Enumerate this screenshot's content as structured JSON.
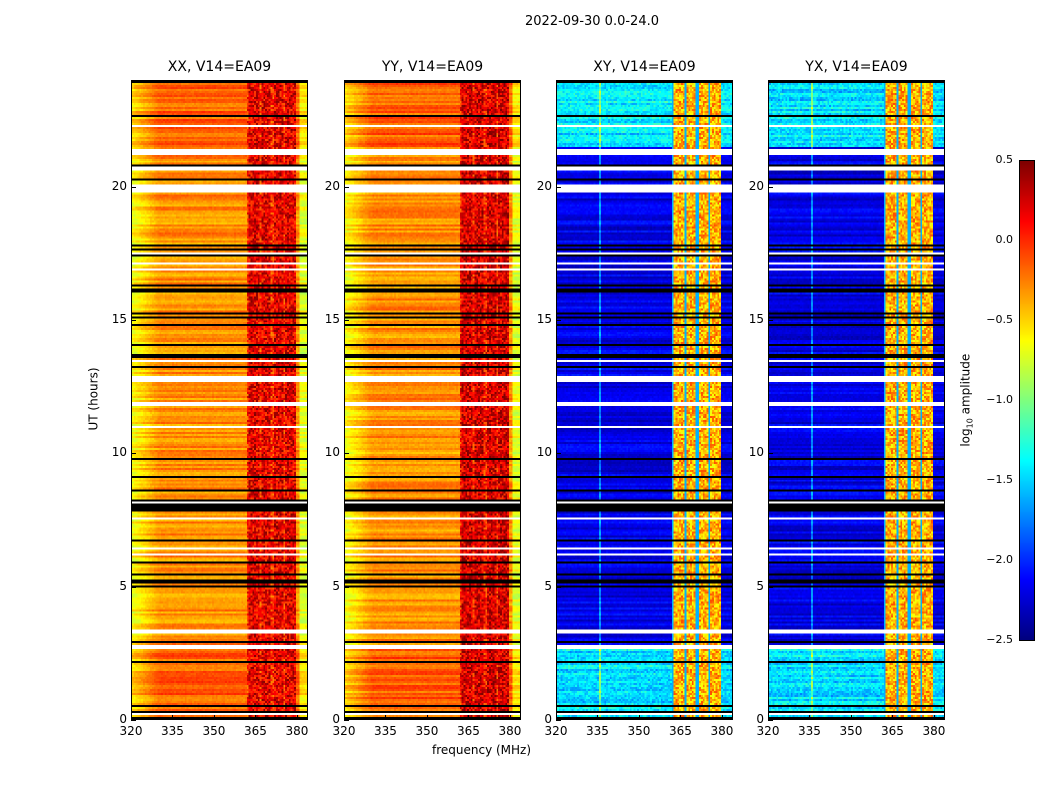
{
  "chart_data": {
    "type": "heatmap",
    "title": "2022-09-30 0.0-24.0",
    "xlabel": "frequency (MHz)",
    "ylabel": "UT (hours)",
    "xlim": [
      320,
      384
    ],
    "ylim": [
      0,
      24
    ],
    "xticks": [
      "320",
      "335",
      "350",
      "365",
      "380"
    ],
    "yticks": [
      "0",
      "5",
      "10",
      "15",
      "20"
    ],
    "panels": [
      {
        "name": "XX, V14=EA09",
        "baseline": -0.3,
        "rfi_level": 0.2
      },
      {
        "name": "YY, V14=EA09",
        "baseline": -0.3,
        "rfi_level": 0.25
      },
      {
        "name": "XY, V14=EA09",
        "baseline": -2.2,
        "rfi_level": -0.4
      },
      {
        "name": "YX, V14=EA09",
        "baseline": -2.2,
        "rfi_level": -0.4
      }
    ],
    "rfi_band_mhz": [
      362,
      380
    ],
    "flagged_gaps_hours": [
      [
        21.2,
        21.4
      ],
      [
        20.6,
        20.8
      ],
      [
        19.8,
        20.1
      ],
      [
        12.7,
        12.9
      ],
      [
        11.8,
        11.9
      ],
      [
        3.2,
        3.35
      ],
      [
        2.6,
        2.75
      ]
    ],
    "colorbar": {
      "label": "log10 amplitude",
      "label_main": "log",
      "label_sub": "10",
      "label_rest": " amplitude",
      "colormap": "jet",
      "range": [
        -2.5,
        0.5
      ],
      "ticks": [
        "0.5",
        "0.0",
        "−0.5",
        "−1.0",
        "−1.5",
        "−2.0",
        "−2.5"
      ]
    }
  }
}
